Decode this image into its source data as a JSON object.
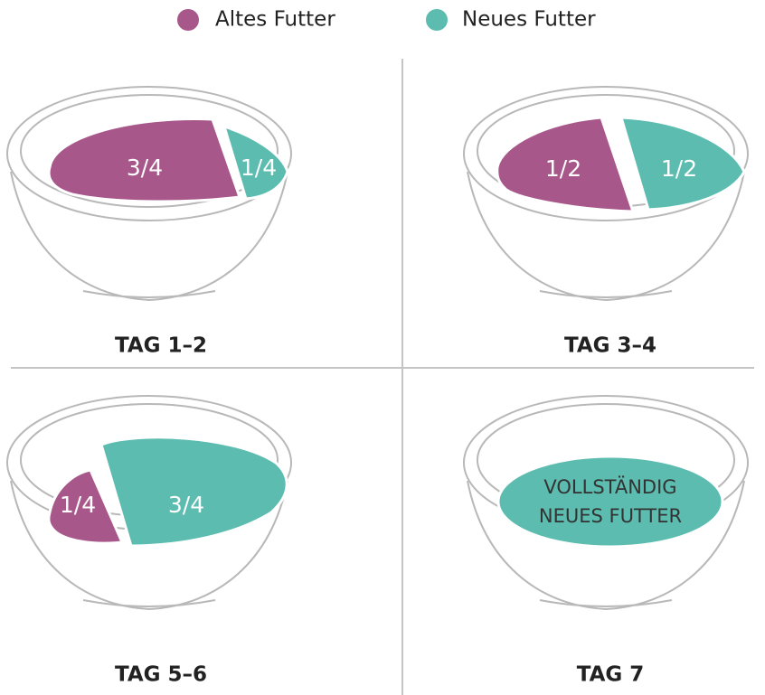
{
  "legend": [
    {
      "label": "Altes Futter",
      "color": "#a8578a"
    },
    {
      "label": "Neues Futter",
      "color": "#5bbcaf"
    }
  ],
  "panels": [
    {
      "label": "TAG 1–2",
      "old_portion": "3/4",
      "new_portion": "1/4"
    },
    {
      "label": "TAG 3–4",
      "old_portion": "1/2",
      "new_portion": "1/2"
    },
    {
      "label": "TAG 5–6",
      "old_portion": "1/4",
      "new_portion": "3/4"
    },
    {
      "label": "TAG 7",
      "new_portion_lines": [
        "VOLLSTÄNDIG",
        "NEUES FUTTER"
      ]
    }
  ]
}
